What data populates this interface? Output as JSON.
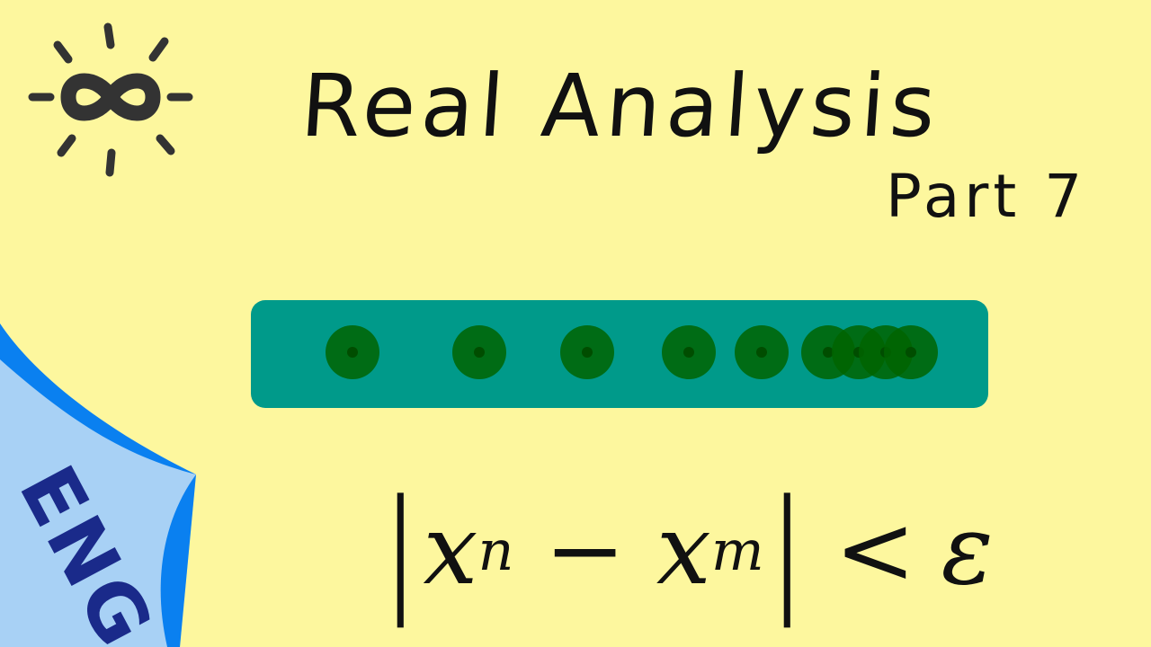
{
  "title": "Real Analysis",
  "part": "Part 7",
  "language_tag": "ENG",
  "formula": {
    "open_bar": "|",
    "x1": "x",
    "sub1": "n",
    "minus": "−",
    "x2": "x",
    "sub2": "m",
    "close_bar": "|",
    "relation": "<",
    "epsilon": "ε"
  },
  "sequence_dot_count": 9,
  "colors": {
    "background": "#fdf79e",
    "bar": "#009a8a",
    "dot": "#006400",
    "corner_light": "#a8d1f5",
    "corner_dark": "#0a80f0",
    "logo": "#333333"
  }
}
